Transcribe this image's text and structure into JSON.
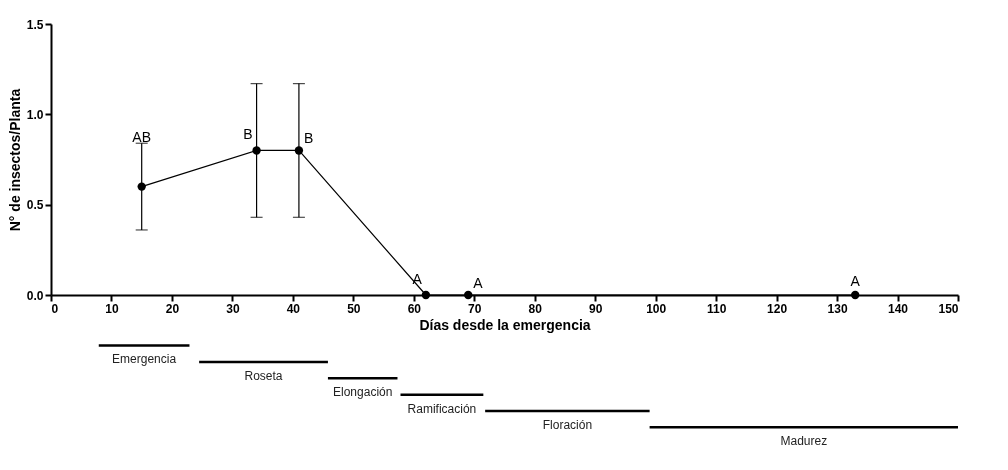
{
  "chart_data": [
    {
      "type": "line",
      "xlabel": "Días desde la emergencia",
      "ylabel": "N° de insectos/Planta",
      "x": [
        15,
        34,
        41,
        62,
        69,
        133
      ],
      "series": [
        {
          "color": "#000000",
          "values": [
            0.6,
            0.8,
            0.8,
            0,
            0,
            0
          ],
          "errors": [
            [
              0.36,
              0.84
            ],
            [
              0.43,
              1.17
            ],
            [
              0.43,
              1.17
            ],
            null,
            null,
            null
          ]
        }
      ],
      "xlim": [
        0,
        150
      ],
      "xticks": [
        0,
        10,
        20,
        30,
        40,
        50,
        60,
        70,
        80,
        90,
        100,
        110,
        120,
        130,
        140,
        150
      ],
      "ylim": [
        0,
        1.5
      ],
      "yticks": [
        {
          "value": 0,
          "label": "0.0"
        },
        {
          "value": 0.5,
          "label": "0.5"
        },
        {
          "value": 1,
          "label": "1.0"
        },
        {
          "value": 1.5,
          "label": "1.5"
        }
      ],
      "marker": "circle",
      "line_style": "solid",
      "grid": false,
      "annotations": [
        {
          "text": "AB",
          "x": 15,
          "y": 0.84
        },
        {
          "text": "B",
          "x": 34,
          "y": 0.8
        },
        {
          "text": "B",
          "x": 41,
          "y": 0.8
        },
        {
          "text": "A",
          "x": 62,
          "y": 0
        },
        {
          "text": "A",
          "x": 69,
          "y": 0
        },
        {
          "text": "A",
          "x": 133,
          "y": 0
        }
      ]
    },
    {
      "type": "bar",
      "orientation": "horizontal",
      "categories": [
        null,
        null,
        null,
        null,
        null,
        null
      ],
      "annotations": [
        "Emergencia",
        "Roseta",
        "Elongación",
        "Ramificación",
        "Floración",
        "Madurez"
      ],
      "base": [
        7.9,
        24.5,
        45.8,
        57.8,
        71.8,
        99
      ],
      "values": [
        15,
        21.3,
        11.5,
        13.7,
        27.2,
        51
      ],
      "color": "#000000",
      "xlim": [
        0,
        150
      ],
      "tick_labels": false
    }
  ]
}
